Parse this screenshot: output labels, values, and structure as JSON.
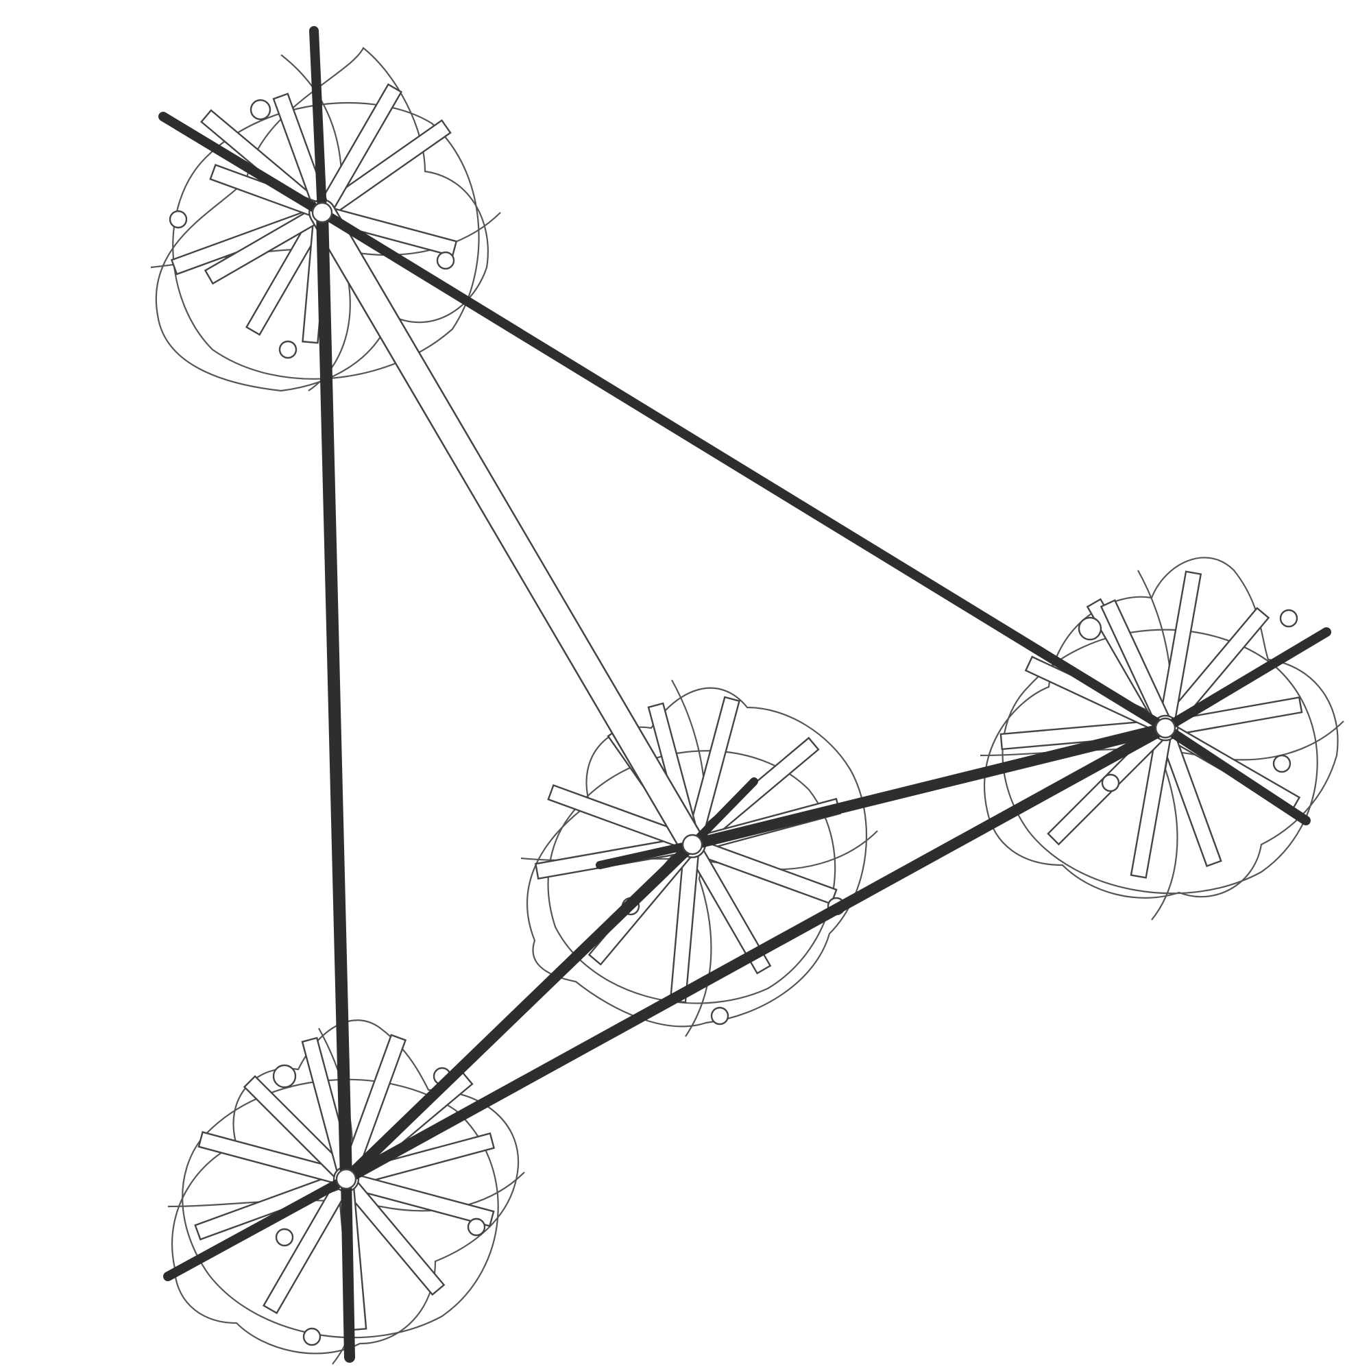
{
  "figure": {
    "subject": "tetrahedral-rod-structure",
    "node_count": 4,
    "colors": {
      "background": "#ffffff",
      "heavy_rod": "#2e2e2e",
      "line": "#555555"
    }
  }
}
